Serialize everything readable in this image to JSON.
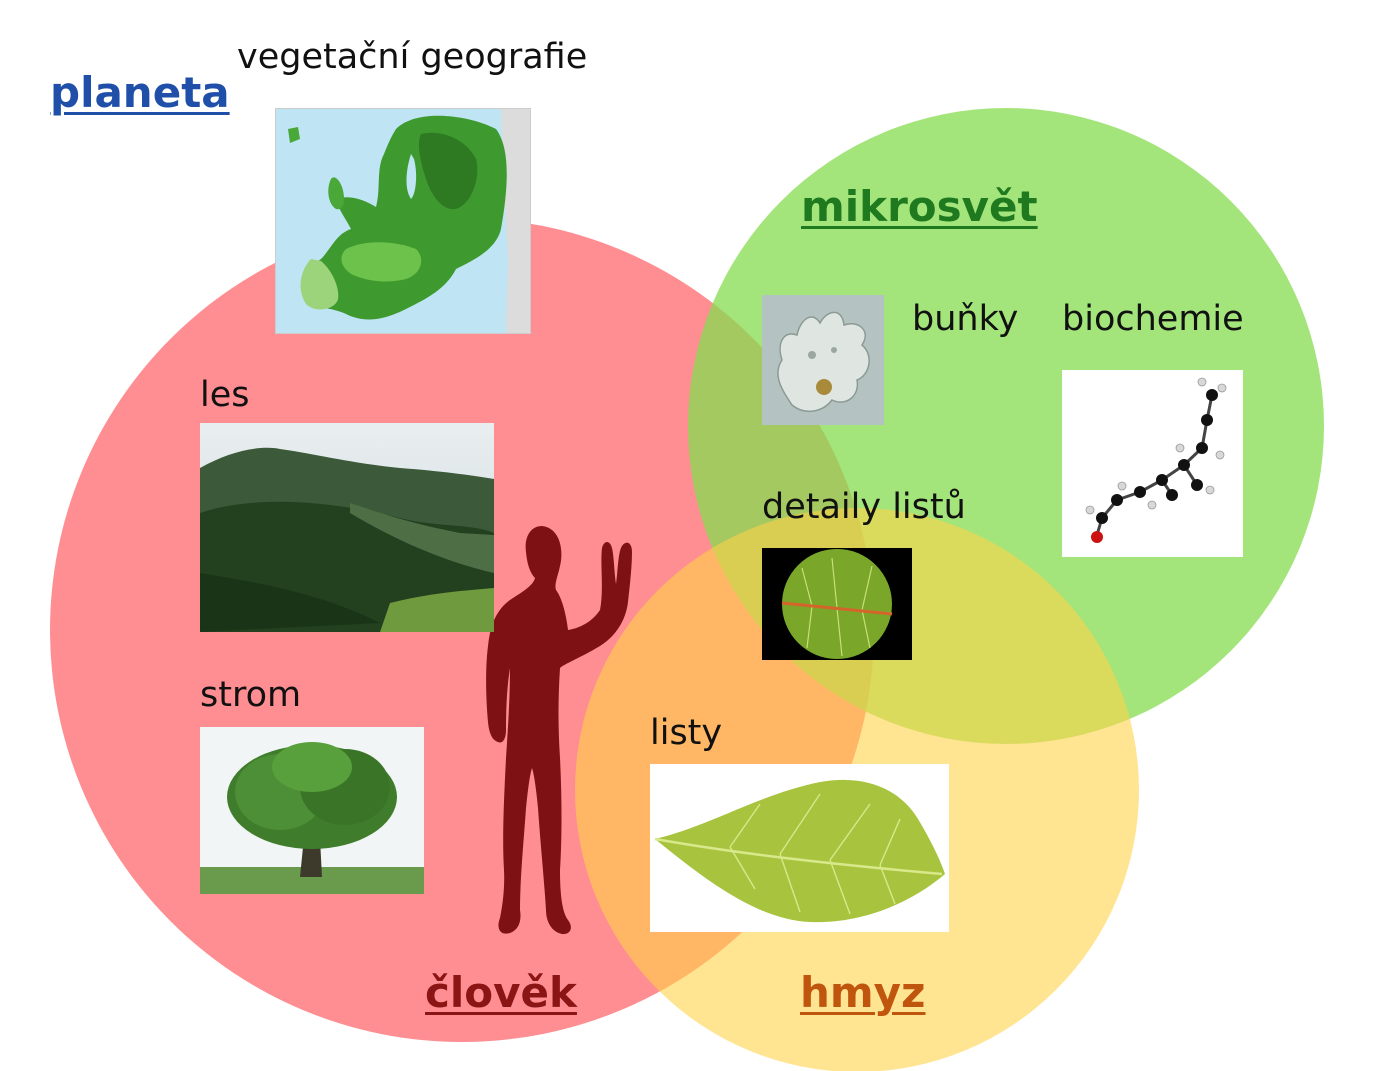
{
  "links": {
    "planeta": "planeta",
    "mikrosvet": "mikrosvět",
    "clovek": "člověk",
    "hmyz": "hmyz"
  },
  "labels": {
    "vegetacni_geografie": "vegetační geografie",
    "les": "les",
    "strom": "strom",
    "bunky": "buňky",
    "biochemie": "biochemie",
    "detaily_listu": "detaily listů",
    "listy": "listy"
  },
  "colors": {
    "planeta_link": "#1f4fa8",
    "mikrosvet_link": "#1f7a1f",
    "clovek_link": "#8b1414",
    "hmyz_link": "#c0560e",
    "circle_clovek": "#ff7a7f",
    "circle_mikrosvet": "#8fe05e",
    "circle_hmyz": "#ffd65a",
    "silhouette": "#7d1114"
  },
  "images": {
    "map": "europe-vegetation-map",
    "forest": "forest-landscape-photo",
    "tree": "oak-tree-photo",
    "amoeba": "amoeba-cell-micrograph",
    "molecule": "molecule-ball-and-stick-model",
    "leaf_detail": "leaf-detail-micrograph",
    "leaf": "leaf-photo"
  }
}
